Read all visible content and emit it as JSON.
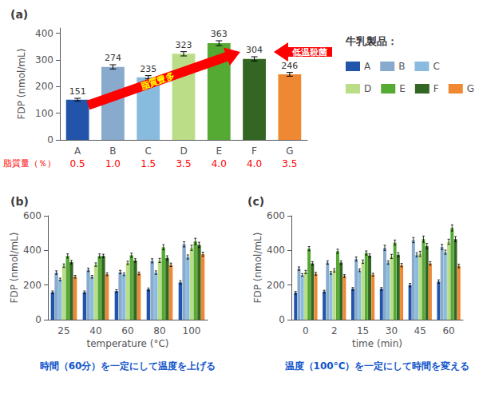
{
  "legend_title": "牛乳製品：",
  "chart_data": [
    {
      "type": "bar",
      "title": "(a)",
      "categories": [
        "A",
        "B",
        "C",
        "D",
        "E",
        "F",
        "G"
      ],
      "values": [
        151,
        274,
        235,
        323,
        363,
        304,
        246
      ],
      "errors": [
        5,
        8,
        6,
        8,
        9,
        8,
        7
      ],
      "colors": [
        "#2255aa",
        "#88aacc",
        "#88bbdd",
        "#bbdd88",
        "#55aa33",
        "#336622",
        "#ee8833"
      ],
      "ylabel": "FDP (nmol/mL)",
      "ylim": [
        0,
        420
      ],
      "yticks": [
        0,
        100,
        200,
        300,
        400
      ],
      "grid": false,
      "data_labels": true,
      "fat_content": {
        "label": "脂質量（％）",
        "labels": [
          "0.5",
          "1.0",
          "1.5",
          "3.5",
          "4.0",
          "4.0",
          "3.5"
        ],
        "color": "red"
      },
      "annotations": [
        {
          "text": "脂質豊多",
          "color": "yellow",
          "arrow_color": "red"
        },
        {
          "text": "低温殺菌",
          "color": "white",
          "arrow_color": "red"
        }
      ]
    },
    {
      "type": "bar",
      "title": "(b)",
      "categories": [
        "25",
        "40",
        "60",
        "80",
        "100"
      ],
      "xlabel": "temperature (°C)",
      "ylabel": "FDP (nmol/mL)",
      "ylim": [
        0,
        600
      ],
      "yticks": [
        0,
        200,
        400,
        600
      ],
      "grid": false,
      "caption": "時間（60分）を一定にして温度を上げる",
      "caption_color": "#1155cc",
      "series": [
        {
          "name": "A",
          "color": "#2255aa",
          "values": [
            158,
            158,
            165,
            175,
            215
          ],
          "errors": [
            8,
            8,
            8,
            8,
            10
          ]
        },
        {
          "name": "B",
          "color": "#88aacc",
          "values": [
            272,
            288,
            275,
            340,
            435
          ],
          "errors": [
            10,
            10,
            10,
            12,
            15
          ]
        },
        {
          "name": "C",
          "color": "#88bbdd",
          "values": [
            232,
            248,
            262,
            272,
            362
          ],
          "errors": [
            8,
            8,
            8,
            10,
            12
          ]
        },
        {
          "name": "D",
          "color": "#bbdd88",
          "values": [
            312,
            318,
            328,
            342,
            415
          ],
          "errors": [
            10,
            10,
            10,
            12,
            15
          ]
        },
        {
          "name": "E",
          "color": "#55aa33",
          "values": [
            368,
            368,
            372,
            418,
            452
          ],
          "errors": [
            12,
            12,
            12,
            15,
            18
          ]
        },
        {
          "name": "F",
          "color": "#336622",
          "values": [
            332,
            368,
            342,
            357,
            432
          ],
          "errors": [
            10,
            10,
            10,
            12,
            15
          ]
        },
        {
          "name": "G",
          "color": "#ee8833",
          "values": [
            248,
            262,
            267,
            317,
            378
          ],
          "errors": [
            8,
            8,
            8,
            10,
            12
          ]
        }
      ]
    },
    {
      "type": "bar",
      "title": "(c)",
      "categories": [
        "0",
        "2",
        "15",
        "30",
        "45",
        "60"
      ],
      "xlabel": "time (min)",
      "ylabel": "FDP (nmol/mL)",
      "ylim": [
        0,
        600
      ],
      "yticks": [
        0,
        200,
        400,
        600
      ],
      "grid": false,
      "caption": "温度（100°C）を一定にして時間を変える",
      "caption_color": "#1155cc",
      "series": [
        {
          "name": "A",
          "color": "#2255aa",
          "values": [
            155,
            162,
            178,
            178,
            200,
            220
          ],
          "errors": [
            8,
            8,
            8,
            8,
            10,
            10
          ]
        },
        {
          "name": "B",
          "color": "#88aacc",
          "values": [
            295,
            330,
            350,
            415,
            460,
            420
          ],
          "errors": [
            10,
            10,
            12,
            15,
            15,
            15
          ]
        },
        {
          "name": "C",
          "color": "#88bbdd",
          "values": [
            258,
            270,
            285,
            330,
            375,
            390
          ],
          "errors": [
            8,
            8,
            8,
            10,
            12,
            12
          ]
        },
        {
          "name": "D",
          "color": "#bbdd88",
          "values": [
            275,
            285,
            335,
            365,
            380,
            450
          ],
          "errors": [
            10,
            10,
            10,
            12,
            15,
            15
          ]
        },
        {
          "name": "E",
          "color": "#55aa33",
          "values": [
            410,
            395,
            385,
            445,
            465,
            530
          ],
          "errors": [
            12,
            12,
            12,
            15,
            18,
            18
          ]
        },
        {
          "name": "F",
          "color": "#336622",
          "values": [
            325,
            330,
            370,
            375,
            425,
            465
          ],
          "errors": [
            10,
            10,
            10,
            12,
            15,
            15
          ]
        },
        {
          "name": "G",
          "color": "#ee8833",
          "values": [
            265,
            252,
            260,
            315,
            325,
            310
          ],
          "errors": [
            8,
            8,
            8,
            10,
            10,
            10
          ]
        }
      ]
    }
  ]
}
